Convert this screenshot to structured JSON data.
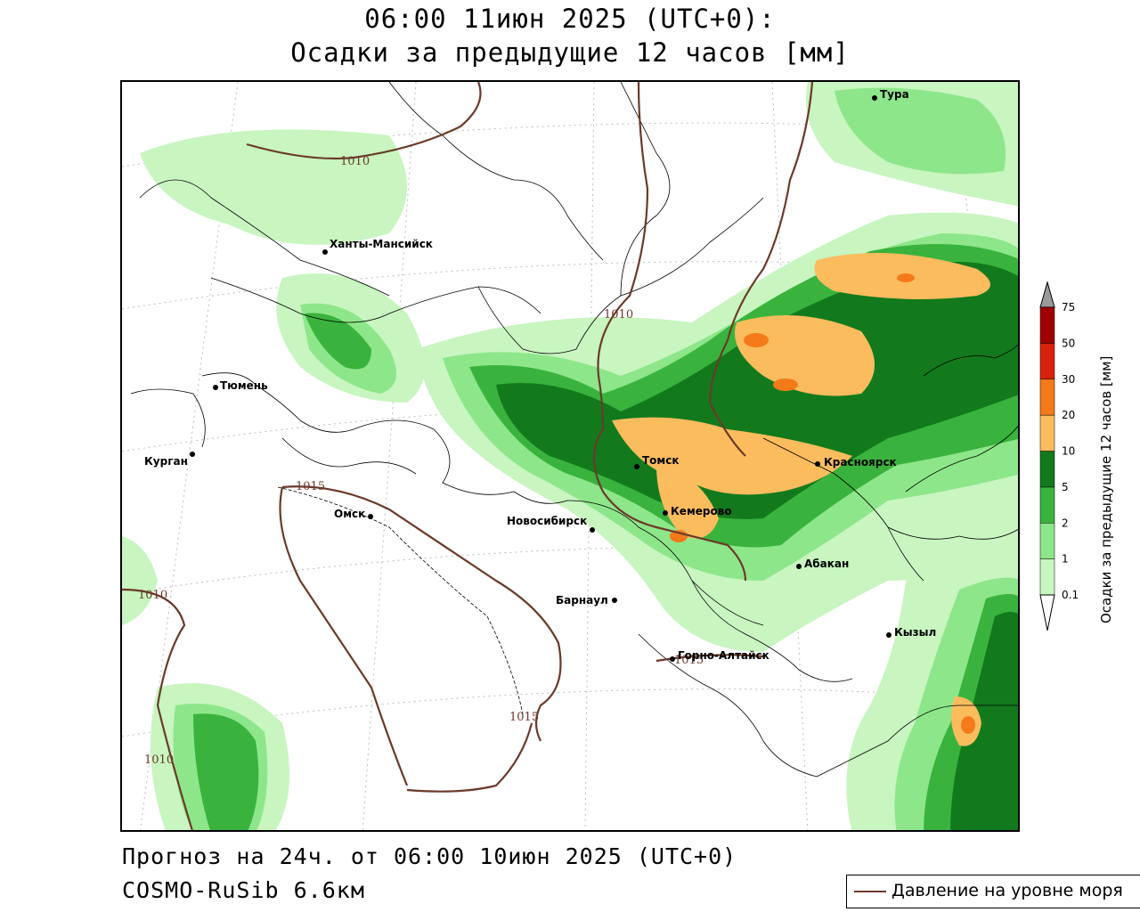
{
  "header": {
    "line1": "06:00 11июн 2025 (UTC+0):",
    "line2": "Осадки за предыдущие 12 часов [мм]"
  },
  "footer": {
    "forecast": "Прогноз на 24ч. от 06:00 10июн 2025 (UTC+0)",
    "model": "COSMO-RuSib 6.6км"
  },
  "legend": {
    "line_label": "Давление на уровне моря",
    "line_color": "#6b3a2a"
  },
  "colorbar": {
    "title": "Осадки за предыдущие 12 часов [мм]",
    "levels": [
      "0.1",
      "1",
      "2",
      "5",
      "10",
      "20",
      "30",
      "50",
      "75"
    ],
    "colors": [
      "#ffffff",
      "#c8f5c0",
      "#8ee68a",
      "#39b33d",
      "#127a1c",
      "#fbbc5e",
      "#f47a1a",
      "#d9220e",
      "#a10000",
      "#9a9a9a"
    ]
  },
  "map": {
    "cities": [
      {
        "name": "Тура"
      },
      {
        "name": "Ханты-Мансийск"
      },
      {
        "name": "Тюмень"
      },
      {
        "name": "Курган"
      },
      {
        "name": "Омск"
      },
      {
        "name": "Новосибирск"
      },
      {
        "name": "Томск"
      },
      {
        "name": "Кемерово"
      },
      {
        "name": "Красноярск"
      },
      {
        "name": "Абакан"
      },
      {
        "name": "Барнаул"
      },
      {
        "name": "Кызыл"
      },
      {
        "name": "Горно-Алтайск"
      }
    ],
    "isobars": [
      "1010",
      "1010",
      "1015",
      "1010",
      "1010",
      "1015",
      "1015"
    ]
  }
}
